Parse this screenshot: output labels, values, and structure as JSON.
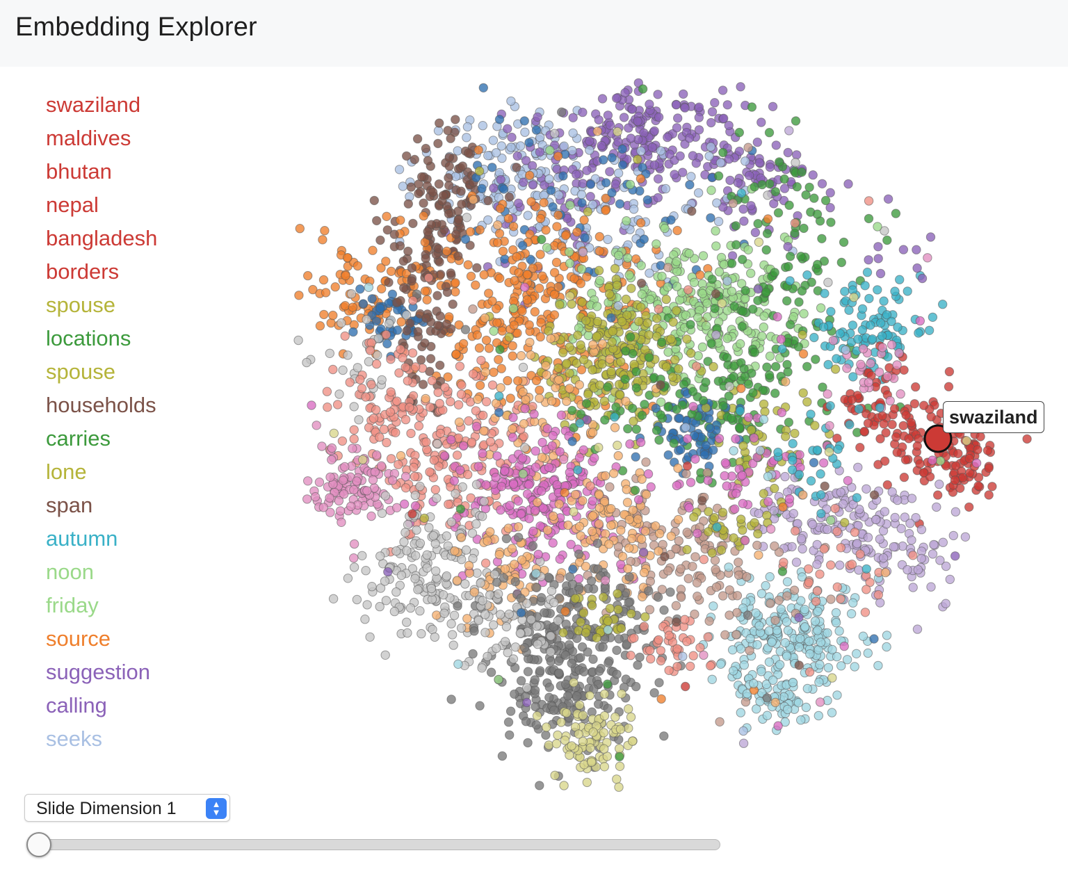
{
  "app": {
    "title": "Embedding Explorer"
  },
  "words": [
    {
      "label": "swaziland",
      "color": "#cc3a35"
    },
    {
      "label": "maldives",
      "color": "#cc3a35"
    },
    {
      "label": "bhutan",
      "color": "#cc3a35"
    },
    {
      "label": "nepal",
      "color": "#cc3a35"
    },
    {
      "label": "bangladesh",
      "color": "#cc3a35"
    },
    {
      "label": "borders",
      "color": "#cc3a35"
    },
    {
      "label": "spouse",
      "color": "#b5b43a"
    },
    {
      "label": "locations",
      "color": "#3c9a3c"
    },
    {
      "label": "spouse",
      "color": "#b5b43a"
    },
    {
      "label": "households",
      "color": "#7b5248"
    },
    {
      "label": "carries",
      "color": "#3c9a3c"
    },
    {
      "label": "lone",
      "color": "#b5b43a"
    },
    {
      "label": "span",
      "color": "#7b5248"
    },
    {
      "label": "autumn",
      "color": "#3ab1c7"
    },
    {
      "label": "noon",
      "color": "#9ad989"
    },
    {
      "label": "friday",
      "color": "#9ad989"
    },
    {
      "label": "source",
      "color": "#ef7f2c"
    },
    {
      "label": "suggestion",
      "color": "#8b62b8"
    },
    {
      "label": "calling",
      "color": "#8b62b8"
    },
    {
      "label": "seeks",
      "color": "#a9c0e3"
    }
  ],
  "scatter": {
    "highlighted": {
      "label": "swaziland",
      "color": "#cc3a35"
    },
    "clusters": [
      {
        "name": "red",
        "color": "#cc3a35"
      },
      {
        "name": "olive",
        "color": "#b5b43a"
      },
      {
        "name": "green",
        "color": "#3c9a3c"
      },
      {
        "name": "brown",
        "color": "#7b5248"
      },
      {
        "name": "cyan",
        "color": "#3ab1c7"
      },
      {
        "name": "light-green",
        "color": "#9ad989"
      },
      {
        "name": "orange",
        "color": "#ef7f2c"
      },
      {
        "name": "purple",
        "color": "#8b62b8"
      },
      {
        "name": "light-blue",
        "color": "#a9c0e3"
      },
      {
        "name": "blue",
        "color": "#2f6fb0"
      },
      {
        "name": "salmon",
        "color": "#f08f84"
      },
      {
        "name": "pink",
        "color": "#e28ec0"
      },
      {
        "name": "magenta",
        "color": "#d96cc2"
      },
      {
        "name": "light-orange",
        "color": "#f5b06f"
      },
      {
        "name": "tan",
        "color": "#c49a8c"
      },
      {
        "name": "lavender",
        "color": "#bca7d6"
      },
      {
        "name": "light-cyan",
        "color": "#9fd6e2"
      },
      {
        "name": "light-gray",
        "color": "#c5c5c5"
      },
      {
        "name": "dark-gray",
        "color": "#7a7a7a"
      },
      {
        "name": "khaki",
        "color": "#d8d68a"
      }
    ]
  },
  "controls": {
    "dimension_select": {
      "value": "Slide Dimension 1"
    },
    "slider": {
      "value": 0,
      "min": 0,
      "max": 1
    }
  }
}
